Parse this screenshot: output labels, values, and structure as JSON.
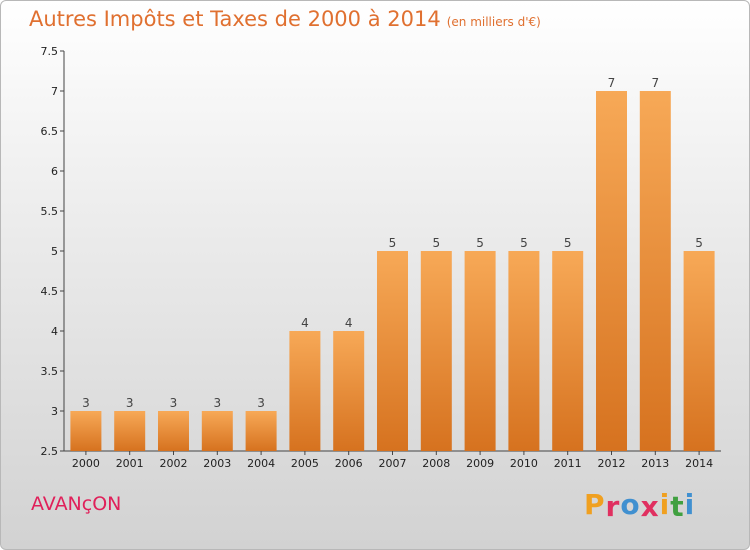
{
  "chart_data": {
    "type": "bar",
    "title": "Autres Impôts et Taxes de 2000 à 2014",
    "subtitle": "(en milliers d'€)",
    "categories": [
      "2000",
      "2001",
      "2002",
      "2003",
      "2004",
      "2005",
      "2006",
      "2007",
      "2008",
      "2009",
      "2010",
      "2011",
      "2012",
      "2013",
      "2014"
    ],
    "values": [
      3,
      3,
      3,
      3,
      3,
      4,
      4,
      5,
      5,
      5,
      5,
      5,
      7,
      7,
      5
    ],
    "data_labels": [
      "3",
      "3",
      "3",
      "3",
      "3",
      "4",
      "4",
      "5",
      "5",
      "5",
      "5",
      "5",
      "7",
      "7",
      "5"
    ],
    "xlabel": "",
    "ylabel": "",
    "ylim": [
      2.5,
      7.5
    ],
    "yticks": [
      "2.5",
      "3",
      "3.5",
      "4",
      "4.5",
      "5",
      "5.5",
      "6",
      "6.5",
      "7",
      "7.5"
    ],
    "grid": false,
    "bar_color_top": "#f7a957",
    "bar_color_bottom": "#d6721f"
  },
  "footer": {
    "town": "AVANçON",
    "logo_letters": [
      "P",
      "r",
      "o",
      "x",
      "i",
      "t",
      "i"
    ],
    "logo_colors": [
      "#f0a020",
      "#e03060",
      "#4090d0",
      "#e03060",
      "#f0a020",
      "#40a040",
      "#4090d0"
    ]
  }
}
